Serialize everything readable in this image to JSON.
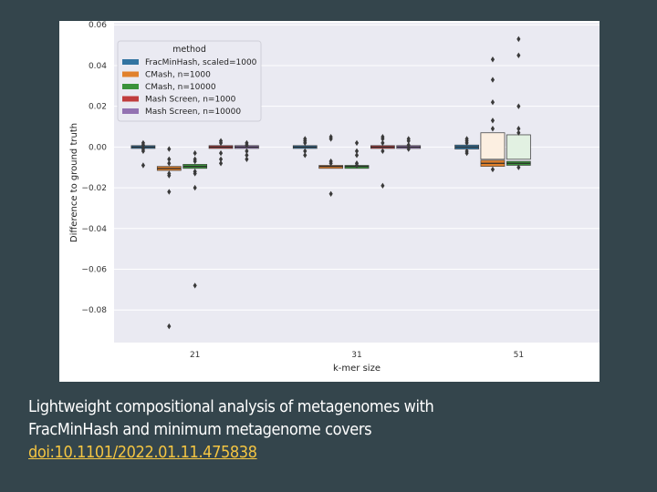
{
  "slide": {
    "caption_line1": "Lightweight compositional analysis of metagenomes with",
    "caption_line2": "FracMinHash and minimum metagenome covers",
    "doi_text": "doi:10.1101/2022.01.11.475838",
    "background": "#34454c",
    "link_color": "#f4c542"
  },
  "chart_data": {
    "type": "boxen",
    "title": "",
    "xlabel": "k-mer size",
    "ylabel": "Difference to ground truth",
    "categories": [
      "21",
      "31",
      "51"
    ],
    "ylim": [
      -0.096,
      0.061
    ],
    "yticks": [
      0.06,
      0.04,
      0.02,
      0.0,
      -0.02,
      -0.04,
      -0.06,
      -0.08
    ],
    "ytick_labels": [
      "0.06",
      "0.04",
      "0.02",
      "0.00",
      "−0.02",
      "−0.04",
      "−0.06",
      "−0.08"
    ],
    "grid": true,
    "legend": {
      "title": "method",
      "placement": "upper-left"
    },
    "series": [
      {
        "name": "FracMinHash, scaled=1000",
        "color": "#3274a1",
        "median": [
          0.0,
          0.0,
          0.0
        ],
        "boxes": [
          [
            -0.0005,
            0.0005
          ],
          [
            -0.0005,
            0.0005
          ],
          [
            -0.001,
            0.001
          ]
        ],
        "outliers": [
          [
            0.002,
            0.001,
            -0.001,
            -0.002,
            -0.009
          ],
          [
            0.004,
            0.003,
            0.002,
            -0.002,
            -0.004
          ],
          [
            0.004,
            0.003,
            0.002,
            -0.002,
            -0.003
          ]
        ]
      },
      {
        "name": "CMash, n=1000",
        "color": "#e1812c",
        "median": [
          -0.0105,
          -0.0095,
          -0.008
        ],
        "boxes": [
          [
            -0.0115,
            -0.0095
          ],
          [
            -0.0105,
            -0.009
          ],
          [
            -0.0095,
            -0.0065
          ]
        ],
        "outliers": [
          [
            -0.001,
            -0.006,
            -0.008,
            -0.013,
            -0.014,
            -0.022,
            -0.088
          ],
          [
            0.005,
            0.004,
            -0.007,
            -0.008,
            -0.023
          ],
          [
            0.043,
            0.033,
            0.022,
            0.013,
            0.009,
            -0.011
          ]
        ]
      },
      {
        "name": "CMash, n=10000",
        "color": "#3a923a",
        "median": [
          -0.0095,
          -0.0095,
          -0.008
        ],
        "boxes": [
          [
            -0.0105,
            -0.0085
          ],
          [
            -0.0105,
            -0.009
          ],
          [
            -0.009,
            -0.007
          ]
        ],
        "outliers": [
          [
            -0.003,
            -0.006,
            -0.007,
            -0.012,
            -0.013,
            -0.02,
            -0.068
          ],
          [
            0.002,
            -0.002,
            -0.004,
            -0.008,
            -0.009
          ],
          [
            0.053,
            0.045,
            0.02,
            0.009,
            0.007,
            -0.01
          ]
        ]
      },
      {
        "name": "Mash Screen, n=1000",
        "color": "#c03d3e",
        "median": [
          0.0,
          0.0,
          null
        ],
        "boxes": [
          [
            -0.0005,
            0.0005
          ],
          [
            -0.0005,
            0.0005
          ],
          null
        ],
        "outliers": [
          [
            0.003,
            0.002,
            -0.003,
            -0.006,
            -0.008
          ],
          [
            0.005,
            0.004,
            0.002,
            -0.002,
            -0.019
          ],
          []
        ]
      },
      {
        "name": "Mash Screen, n=10000",
        "color": "#9372b2",
        "median": [
          0.0,
          0.0,
          null
        ],
        "boxes": [
          [
            -0.0005,
            0.0005
          ],
          [
            -0.0005,
            0.0005
          ],
          null
        ],
        "outliers": [
          [
            0.002,
            0.001,
            -0.002,
            -0.004,
            -0.006
          ],
          [
            0.004,
            0.003,
            0.001,
            -0.001
          ],
          []
        ]
      }
    ],
    "extra_boxes": [
      {
        "series": 1,
        "category": 2,
        "range": [
          -0.006,
          0.007
        ],
        "fill": "#fcefe1"
      },
      {
        "series": 2,
        "category": 2,
        "range": [
          -0.006,
          0.006
        ],
        "fill": "#e2f1e2"
      }
    ]
  }
}
